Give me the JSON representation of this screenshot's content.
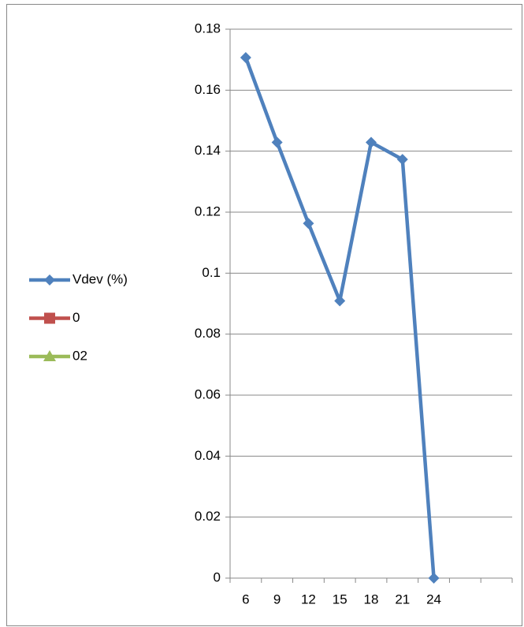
{
  "chart_data": {
    "type": "line",
    "categories": [
      "6",
      "9",
      "12",
      "15",
      "18",
      "21",
      "24",
      null,
      null
    ],
    "series": [
      {
        "name": "Vdev (%)",
        "color": "#4f81bd",
        "marker": "diamond",
        "values": [
          0.1707,
          0.1429,
          0.1163,
          0.0909,
          0.1429,
          0.1373,
          0,
          null,
          null
        ]
      },
      {
        "name": "0",
        "color": "#c0504d",
        "marker": "square",
        "values": [
          null,
          null,
          null,
          null,
          null,
          null,
          null,
          null,
          null
        ]
      },
      {
        "name": "02",
        "color": "#9bbb59",
        "marker": "triangle",
        "values": [
          null,
          null,
          null,
          null,
          null,
          null,
          null,
          null,
          null
        ]
      }
    ],
    "ylim": [
      0,
      0.18
    ],
    "yticks": [
      0,
      0.02,
      0.04,
      0.06,
      0.08,
      0.1,
      0.12,
      0.14,
      0.16,
      0.18
    ],
    "grid": true,
    "legend": "left"
  }
}
